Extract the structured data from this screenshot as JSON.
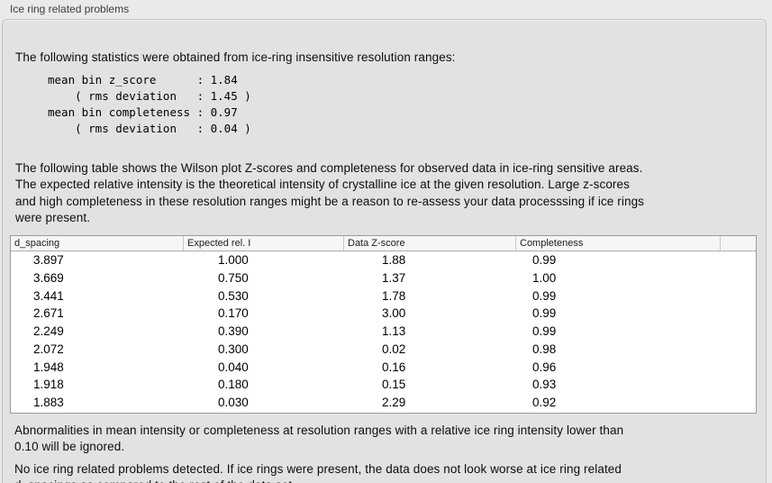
{
  "panel": {
    "title": "Ice ring related problems"
  },
  "intro": {
    "text": "The following statistics were obtained from ice-ring insensitive resolution ranges:",
    "stats_block": "mean bin z_score      : 1.84\n    ( rms deviation   : 1.45 )\nmean bin completeness : 0.97\n    ( rms deviation   : 0.04 )",
    "stats": {
      "mean_bin_z_score": "1.84",
      "z_score_rms_deviation": "1.45",
      "mean_bin_completeness": "0.97",
      "completeness_rms_deviation": "0.04"
    }
  },
  "description": {
    "text": "The following table shows the Wilson plot Z-scores and completeness for observed data in ice-ring sensitive areas.\nThe expected relative intensity is the theoretical intensity of crystalline ice at the given resolution. Large z-scores\nand high completeness in these resolution ranges might be a reason to re-assess your data processsing if ice rings\nwere present."
  },
  "table": {
    "columns": [
      "d_spacing",
      "Expected rel. I",
      "Data Z-score",
      "Completeness"
    ],
    "rows": [
      [
        "3.897",
        "1.000",
        "1.88",
        "0.99"
      ],
      [
        "3.669",
        "0.750",
        "1.37",
        "1.00"
      ],
      [
        "3.441",
        "0.530",
        "1.78",
        "0.99"
      ],
      [
        "2.671",
        "0.170",
        "3.00",
        "0.99"
      ],
      [
        "2.249",
        "0.390",
        "1.13",
        "0.99"
      ],
      [
        "2.072",
        "0.300",
        "0.02",
        "0.98"
      ],
      [
        "1.948",
        "0.040",
        "0.16",
        "0.96"
      ],
      [
        "1.918",
        "0.180",
        "0.15",
        "0.93"
      ],
      [
        "1.883",
        "0.030",
        "2.29",
        "0.92"
      ]
    ]
  },
  "notes": {
    "ignore_note": "Abnormalities in mean intensity or completeness at resolution ranges with a relative ice ring intensity lower than\n0.10 will be ignored.",
    "conclusion": "No ice ring related problems detected. If ice rings were present, the data does not look worse at ice ring related\nd_spacings as compared to the rest of the data set."
  },
  "colors": {
    "panel_bg": "#e2e2e2",
    "outer_bg": "#eaeaea",
    "table_bg": "#ffffff",
    "table_header_bg": "#f6f6f6",
    "table_border": "#9b9b9b"
  }
}
